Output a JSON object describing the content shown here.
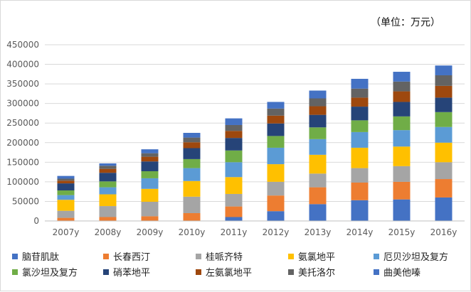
{
  "chart_data": {
    "type": "bar",
    "stacked": true,
    "unit_label": "（单位：万元）",
    "categories": [
      "2007y",
      "2008y",
      "2009y",
      "2010y",
      "2011y",
      "2012y",
      "2013y",
      "2014y",
      "2015y",
      "2016y"
    ],
    "ylim": [
      0,
      450000
    ],
    "yticks": [
      0,
      50000,
      100000,
      150000,
      200000,
      250000,
      300000,
      350000,
      400000,
      450000
    ],
    "grid": true,
    "legend_position": "bottom",
    "series": [
      {
        "name": "脑苷肌肽",
        "color": "#4472c4",
        "values": [
          0,
          0,
          0,
          0,
          10000,
          25000,
          43000,
          53000,
          55000,
          60000
        ]
      },
      {
        "name": "长春西汀",
        "color": "#ed7d31",
        "values": [
          8000,
          10000,
          12000,
          20000,
          27000,
          40000,
          43000,
          45000,
          45000,
          47000
        ]
      },
      {
        "name": "桂哌齐特",
        "color": "#a5a5a5",
        "values": [
          18000,
          28000,
          37000,
          42000,
          32000,
          35000,
          35000,
          37000,
          40000,
          43000
        ]
      },
      {
        "name": "氨氯地平",
        "color": "#ffc000",
        "values": [
          28000,
          30000,
          33000,
          40000,
          43000,
          45000,
          48000,
          52000,
          50000,
          50000
        ]
      },
      {
        "name": "厄贝沙坦及复方",
        "color": "#5b9bd5",
        "values": [
          12000,
          18000,
          27000,
          33000,
          38000,
          42000,
          40000,
          40000,
          42000,
          40000
        ]
      },
      {
        "name": "氯沙坦及复方",
        "color": "#70ad47",
        "values": [
          12000,
          15000,
          18000,
          23000,
          30000,
          30000,
          30000,
          30000,
          35000,
          38000
        ]
      },
      {
        "name": "硝苯地平",
        "color": "#264478",
        "values": [
          18000,
          22000,
          25000,
          28000,
          32000,
          32000,
          32000,
          35000,
          37000,
          37000
        ]
      },
      {
        "name": "左氨氯地平",
        "color": "#9e480e",
        "values": [
          7000,
          10000,
          12000,
          15000,
          18000,
          20000,
          22000,
          23000,
          27000,
          30000
        ]
      },
      {
        "name": "美托洛尔",
        "color": "#636363",
        "values": [
          5000,
          8000,
          9000,
          12000,
          15000,
          18000,
          20000,
          23000,
          25000,
          27000
        ]
      },
      {
        "name": "曲美他嗪",
        "color": "#4472c4",
        "values": [
          7000,
          6000,
          10000,
          12000,
          17000,
          17000,
          20000,
          25000,
          25000,
          25000
        ]
      }
    ]
  }
}
